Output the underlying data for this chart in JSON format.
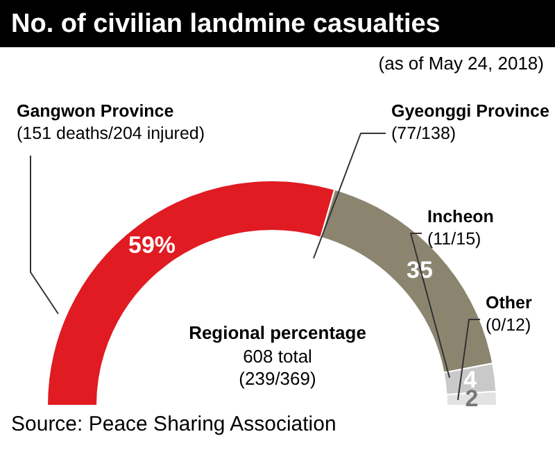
{
  "chart_data": {
    "type": "donut",
    "title": "No. of civilian landmine casualties",
    "subtitle": "(as of May 24, 2018)",
    "categories": [
      "Gangwon Province\n(151 deaths/204 injured)",
      "Gyeonggi Province\n(77/138)",
      "Incheon\n(11/15)",
      "Other\n(0/12)"
    ],
    "values": [
      59,
      35,
      4,
      2
    ],
    "colors": [
      "#e01b22",
      "#8b8570",
      "#c9c9c9",
      "#e3e3e3"
    ],
    "value_labels": [
      "59%",
      "35",
      "4",
      "2"
    ],
    "annotations": [
      "Regional percentage",
      "608 total",
      "(239/369)",
      "Source: Peace Sharing Association"
    ]
  }
}
